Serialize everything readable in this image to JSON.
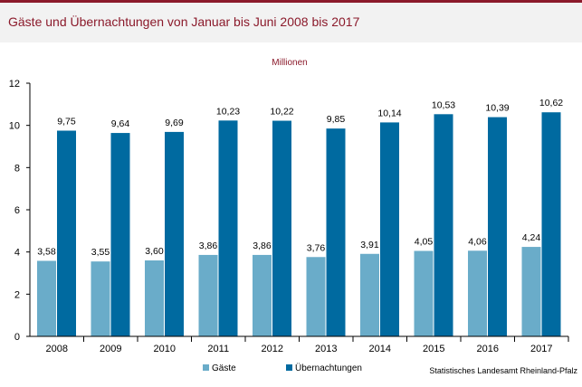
{
  "title": "Gäste und Übernachtungen von Januar bis Juni 2008 bis 2017",
  "source": "Statistisches Landesamt Rheinland-Pfalz",
  "colors": {
    "title": "#8b1a2b",
    "gaeste": "#6aacc9",
    "uebernachtungen": "#006aa0",
    "header_bg": "#f2f2f2"
  },
  "chart_data": {
    "type": "bar",
    "unit_label": "Millionen",
    "categories": [
      "2008",
      "2009",
      "2010",
      "2011",
      "2012",
      "2013",
      "2014",
      "2015",
      "2016",
      "2017"
    ],
    "series": [
      {
        "name": "Gäste",
        "values": [
          3.58,
          3.55,
          3.6,
          3.86,
          3.86,
          3.76,
          3.91,
          4.05,
          4.06,
          4.24
        ],
        "labels": [
          "3,58",
          "3,55",
          "3,60",
          "3,86",
          "3,86",
          "3,76",
          "3,91",
          "4,05",
          "4,06",
          "4,24"
        ]
      },
      {
        "name": "Übernachtungen",
        "values": [
          9.75,
          9.64,
          9.69,
          10.23,
          10.22,
          9.85,
          10.14,
          10.53,
          10.39,
          10.62
        ],
        "labels": [
          "9,75",
          "9,64",
          "9,69",
          "10,23",
          "10,22",
          "9,85",
          "10,14",
          "10,53",
          "10,39",
          "10,62"
        ]
      }
    ],
    "ylim": [
      0,
      12
    ],
    "yticks": [
      0,
      2,
      4,
      6,
      8,
      10,
      12
    ],
    "grid": false,
    "legend_placement": "bottom"
  }
}
